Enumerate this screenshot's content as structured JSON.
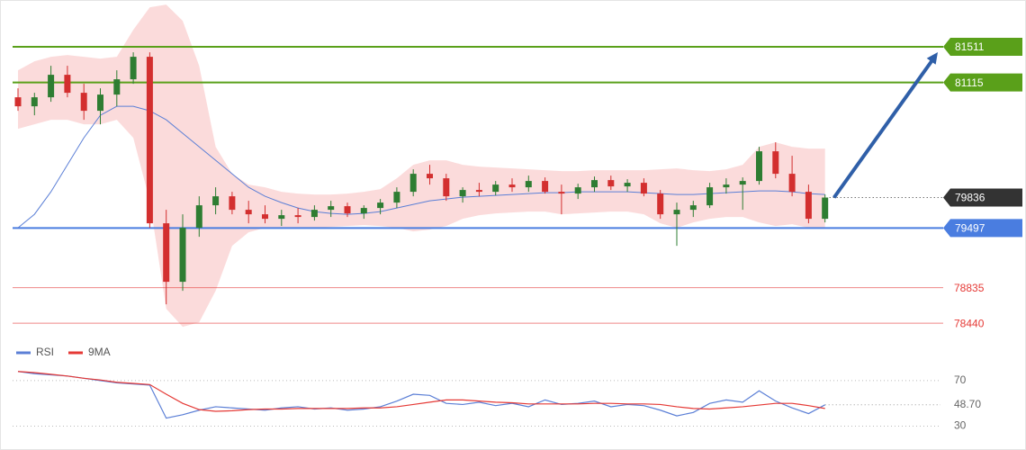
{
  "chart_data": [
    {
      "type": "candlestick",
      "ylim": [
        78231,
        82031
      ],
      "open": [
        80950,
        80850,
        80950,
        81200,
        81000,
        80800,
        80980,
        81150,
        81400,
        79550,
        78900,
        79500,
        79750,
        79850,
        79700,
        79650,
        79600,
        79640,
        79620,
        79700,
        79740,
        79660,
        79720,
        79780,
        79900,
        80100,
        80050,
        79850,
        79920,
        79900,
        79980,
        79950,
        80020,
        79900,
        79880,
        79950,
        80030,
        79960,
        80000,
        79880,
        79650,
        79700,
        79750,
        79950,
        79980,
        80020,
        80350,
        80100,
        79900,
        79600
      ],
      "high": [
        81050,
        81000,
        81300,
        81300,
        81100,
        81050,
        81250,
        81450,
        81450,
        79700,
        79650,
        79850,
        79950,
        79900,
        79800,
        79750,
        79700,
        79720,
        79750,
        79800,
        79780,
        79750,
        79820,
        79950,
        80150,
        80200,
        80100,
        79950,
        80000,
        80020,
        80050,
        80080,
        80060,
        79980,
        79990,
        80070,
        80080,
        80040,
        80050,
        79920,
        79780,
        79800,
        80000,
        80050,
        80060,
        80400,
        80450,
        80300,
        79980,
        79870
      ],
      "low": [
        80800,
        80750,
        80900,
        80950,
        80700,
        80650,
        80850,
        81100,
        79500,
        78650,
        78800,
        79400,
        79650,
        79650,
        79550,
        79550,
        79520,
        79550,
        79580,
        79620,
        79620,
        79600,
        79650,
        79720,
        79850,
        79980,
        79800,
        79780,
        79850,
        79860,
        79900,
        79900,
        79880,
        79650,
        79820,
        79900,
        79920,
        79900,
        79850,
        79600,
        79300,
        79620,
        79720,
        79880,
        79700,
        79980,
        80050,
        79850,
        79550,
        79560
      ],
      "close": [
        80850,
        80950,
        81200,
        81000,
        80800,
        80980,
        81150,
        81400,
        79550,
        78900,
        79500,
        79750,
        79850,
        79700,
        79650,
        79600,
        79640,
        79620,
        79700,
        79740,
        79660,
        79720,
        79780,
        79900,
        80100,
        80050,
        79850,
        79920,
        79900,
        79980,
        79950,
        80020,
        79900,
        79880,
        79950,
        80030,
        79960,
        80000,
        79880,
        79650,
        79700,
        79750,
        79950,
        79980,
        80020,
        80350,
        80100,
        79900,
        79600,
        79836
      ],
      "up_color": "#2e7d32",
      "down_color": "#d32f2f",
      "ma": {
        "color": "#5b7fd6",
        "values": [
          79500,
          79650,
          79900,
          80200,
          80500,
          80750,
          80850,
          80850,
          80800,
          80700,
          80550,
          80400,
          80250,
          80100,
          79950,
          79850,
          79780,
          79720,
          79680,
          79660,
          79650,
          79660,
          79680,
          79720,
          79760,
          79800,
          79820,
          79840,
          79850,
          79860,
          79870,
          79880,
          79890,
          79890,
          79900,
          79900,
          79900,
          79900,
          79890,
          79880,
          79870,
          79870,
          79880,
          79890,
          79900,
          79910,
          79910,
          79900,
          79880,
          79870
        ]
      },
      "band": {
        "color": "#f9cfcf",
        "upper": [
          81250,
          81350,
          81400,
          81420,
          81400,
          81380,
          81400,
          81700,
          81950,
          81980,
          81800,
          81300,
          80400,
          80100,
          79980,
          79950,
          79900,
          79880,
          79870,
          79870,
          79880,
          79900,
          79930,
          80050,
          80200,
          80250,
          80250,
          80200,
          80180,
          80170,
          80160,
          80150,
          80140,
          80130,
          80130,
          80140,
          80140,
          80140,
          80140,
          80150,
          80160,
          80140,
          80130,
          80150,
          80200,
          80400,
          80450,
          80400,
          80380,
          80380
        ],
        "lower": [
          80600,
          80650,
          80700,
          80700,
          80650,
          80650,
          80700,
          80500,
          79800,
          78600,
          78400,
          78450,
          78800,
          79300,
          79450,
          79500,
          79500,
          79500,
          79500,
          79510,
          79520,
          79530,
          79520,
          79500,
          79460,
          79480,
          79520,
          79600,
          79640,
          79660,
          79670,
          79680,
          79680,
          79650,
          79660,
          79670,
          79680,
          79680,
          79650,
          79550,
          79500,
          79560,
          79600,
          79620,
          79620,
          79560,
          79520,
          79540,
          79500,
          79500
        ]
      },
      "levels": [
        {
          "value": 81511,
          "color": "#5aa01a",
          "style": "tag"
        },
        {
          "value": 81115,
          "color": "#5aa01a",
          "style": "tag"
        },
        {
          "value": 79497,
          "color": "#4a7de0",
          "style": "tag"
        },
        {
          "value": 78835,
          "color": "#e53935",
          "style": "text"
        },
        {
          "value": 78440,
          "color": "#e53935",
          "style": "text"
        }
      ],
      "current": 79836,
      "current_color": "#333333",
      "arrow_color": "#2f5fa8"
    },
    {
      "type": "line",
      "ylim": [
        13,
        92
      ],
      "yticks": [
        70,
        30
      ],
      "series": [
        {
          "name": "RSI",
          "color": "#5b7fd6",
          "values": [
            78,
            76,
            75,
            74,
            72,
            70,
            68,
            67,
            66,
            37,
            40,
            44,
            47,
            46,
            45,
            44,
            46,
            47,
            45,
            46,
            44,
            45,
            47,
            52,
            58,
            57,
            50,
            49,
            51,
            48,
            50,
            47,
            53,
            49,
            50,
            52,
            47,
            49,
            48,
            44,
            39,
            42,
            50,
            53,
            51,
            61,
            52,
            46,
            41,
            48.7
          ]
        },
        {
          "name": "9MA",
          "color": "#e53935",
          "values": [
            78,
            77,
            75.5,
            74,
            72,
            70.5,
            68.5,
            67.5,
            66.5,
            58,
            50,
            44.5,
            43,
            43.5,
            44.5,
            45,
            45,
            45.5,
            45.5,
            45.5,
            45.5,
            46,
            46,
            47,
            49,
            51,
            53,
            53,
            52,
            51,
            50.5,
            49.5,
            49.5,
            49.5,
            49.5,
            50,
            50,
            49.5,
            49.5,
            49,
            47,
            45.5,
            45,
            46,
            47,
            48.5,
            50,
            50,
            48,
            45.5
          ]
        }
      ],
      "current": {
        "value": 48.7,
        "label": "48.70"
      }
    }
  ]
}
